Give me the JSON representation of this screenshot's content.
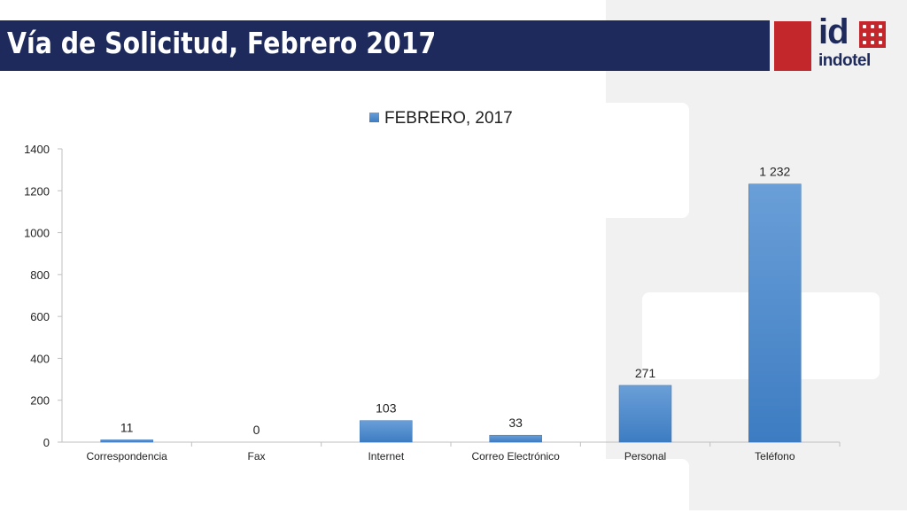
{
  "slide": {
    "title": "Vía de Solicitud, Febrero 2017"
  },
  "logo": {
    "mark": "id",
    "name": "indotel",
    "brand_color": "#c3262b",
    "navy_color": "#1d2a5b"
  },
  "chart_data": {
    "type": "bar",
    "title": "",
    "xlabel": "",
    "ylabel": "",
    "categories": [
      "Correspondencia",
      "Fax",
      "Internet",
      "Correo Electrónico",
      "Personal",
      "Teléfono"
    ],
    "series": [
      {
        "name": "FEBRERO, 2017",
        "values": [
          11,
          0,
          103,
          33,
          271,
          1232
        ],
        "labels": [
          "11",
          "0",
          "103",
          "33",
          "271",
          "1 232"
        ],
        "color": "#4a88cc"
      }
    ],
    "ylim": [
      0,
      1400
    ],
    "yticks": [
      "0",
      "200",
      "400",
      "600",
      "800",
      "1000",
      "1200",
      "1400"
    ],
    "grid": false,
    "legend_position": "top"
  }
}
